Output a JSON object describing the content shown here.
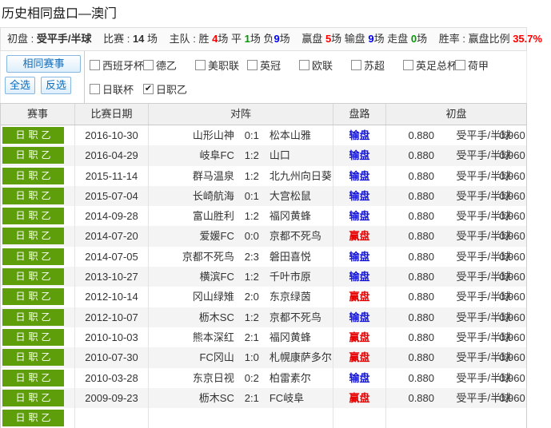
{
  "page": {
    "title": "历史相同盘口—澳门"
  },
  "colors": {
    "badge_green": "#5e9e0b",
    "win_red": "#e60000",
    "lose_blue": "#1414d4",
    "button_blue": "#0b6cbc",
    "stat_red": "#ff0000",
    "stat_green": "#009900",
    "stat_blue": "#0000ff"
  },
  "summary": {
    "s1_label": "初盘 : ",
    "s1_value": "受平手/半球",
    "s2_label": "比赛 : ",
    "s2_value": "14",
    "s2_suffix": " 场",
    "s3_label": "主队 : 胜 ",
    "s3_win": "4",
    "s3_m1": "场 平 ",
    "s3_draw": "1",
    "s3_m2": "场 负",
    "s3_loss": "9",
    "s3_m3": "场",
    "s4_l1": "赢盘 ",
    "s4_win": "5",
    "s4_m1": "场 输盘 ",
    "s4_lose": "9",
    "s4_m2": "场 走盘 ",
    "s4_push": "0",
    "s4_m3": "场",
    "s5_label": "胜率 : 赢盘比例 ",
    "s5_value": "35.7%"
  },
  "filter": {
    "same_event_button": "相同赛事",
    "select_all_button": "全选",
    "invert_button": "反选",
    "leagues": [
      {
        "label": "西班牙杯",
        "checked": false
      },
      {
        "label": "德乙",
        "checked": false
      },
      {
        "label": "美职联",
        "checked": false
      },
      {
        "label": "英冠",
        "checked": false
      },
      {
        "label": "欧联",
        "checked": false
      },
      {
        "label": "苏超",
        "checked": false
      },
      {
        "label": "英足总杯",
        "checked": false
      },
      {
        "label": "荷甲",
        "checked": false
      },
      {
        "label": "日联杯",
        "checked": false
      },
      {
        "label": "日职乙",
        "checked": true
      }
    ]
  },
  "table": {
    "headers": [
      "赛事",
      "比赛日期",
      "对阵",
      "盘路",
      "初盘"
    ],
    "rows": [
      {
        "league": "日职乙",
        "date": "2016-10-30",
        "home": "山形山神",
        "score": "0:1",
        "away": "松本山雅",
        "result": "输盘",
        "result_type": "lose",
        "odds1": "0.880",
        "handicap": "受平手/半球",
        "odds2": "0.960"
      },
      {
        "league": "日职乙",
        "date": "2016-04-29",
        "home": "岐阜FC",
        "score": "1:2",
        "away": "山口",
        "result": "输盘",
        "result_type": "lose",
        "odds1": "0.880",
        "handicap": "受平手/半球",
        "odds2": "0.960"
      },
      {
        "league": "日职乙",
        "date": "2015-11-14",
        "home": "群马温泉",
        "score": "1:2",
        "away": "北九州向日葵",
        "result": "输盘",
        "result_type": "lose",
        "odds1": "0.880",
        "handicap": "受平手/半球",
        "odds2": "0.960"
      },
      {
        "league": "日职乙",
        "date": "2015-07-04",
        "home": "长崎航海",
        "score": "0:1",
        "away": "大宫松鼠",
        "result": "输盘",
        "result_type": "lose",
        "odds1": "0.880",
        "handicap": "受平手/半球",
        "odds2": "0.960"
      },
      {
        "league": "日职乙",
        "date": "2014-09-28",
        "home": "富山胜利",
        "score": "1:2",
        "away": "福冈黄蜂",
        "result": "输盘",
        "result_type": "lose",
        "odds1": "0.880",
        "handicap": "受平手/半球",
        "odds2": "0.960"
      },
      {
        "league": "日职乙",
        "date": "2014-07-20",
        "home": "爱媛FC",
        "score": "0:0",
        "away": "京都不死鸟",
        "result": "赢盘",
        "result_type": "win",
        "odds1": "0.880",
        "handicap": "受平手/半球",
        "odds2": "0.960"
      },
      {
        "league": "日职乙",
        "date": "2014-07-05",
        "home": "京都不死鸟",
        "score": "2:3",
        "away": "磐田喜悦",
        "result": "输盘",
        "result_type": "lose",
        "odds1": "0.880",
        "handicap": "受平手/半球",
        "odds2": "0.960"
      },
      {
        "league": "日职乙",
        "date": "2013-10-27",
        "home": "横滨FC",
        "score": "1:2",
        "away": "千叶市原",
        "result": "输盘",
        "result_type": "lose",
        "odds1": "0.880",
        "handicap": "受平手/半球",
        "odds2": "0.960"
      },
      {
        "league": "日职乙",
        "date": "2012-10-14",
        "home": "冈山绿雉",
        "score": "2:0",
        "away": "东京绿茵",
        "result": "赢盘",
        "result_type": "win",
        "odds1": "0.880",
        "handicap": "受平手/半球",
        "odds2": "0.960"
      },
      {
        "league": "日职乙",
        "date": "2012-10-07",
        "home": "枥木SC",
        "score": "1:2",
        "away": "京都不死鸟",
        "result": "输盘",
        "result_type": "lose",
        "odds1": "0.880",
        "handicap": "受平手/半球",
        "odds2": "0.960"
      },
      {
        "league": "日职乙",
        "date": "2010-10-03",
        "home": "熊本深红",
        "score": "2:1",
        "away": "福冈黄蜂",
        "result": "赢盘",
        "result_type": "win",
        "odds1": "0.880",
        "handicap": "受平手/半球",
        "odds2": "0.960"
      },
      {
        "league": "日职乙",
        "date": "2010-07-30",
        "home": "FC冈山",
        "score": "1:0",
        "away": "札幌康萨多尔",
        "result": "赢盘",
        "result_type": "win",
        "odds1": "0.880",
        "handicap": "受平手/半球",
        "odds2": "0.960"
      },
      {
        "league": "日职乙",
        "date": "2010-03-28",
        "home": "东京日视",
        "score": "0:2",
        "away": "柏雷素尔",
        "result": "输盘",
        "result_type": "lose",
        "odds1": "0.880",
        "handicap": "受平手/半球",
        "odds2": "0.960"
      },
      {
        "league": "日职乙",
        "date": "2009-09-23",
        "home": "枥木SC",
        "score": "2:1",
        "away": "FC岐阜",
        "result": "赢盘",
        "result_type": "win",
        "odds1": "0.880",
        "handicap": "受平手/半球",
        "odds2": "0.960"
      }
    ],
    "partial_row": {
      "league": "日职乙"
    }
  }
}
